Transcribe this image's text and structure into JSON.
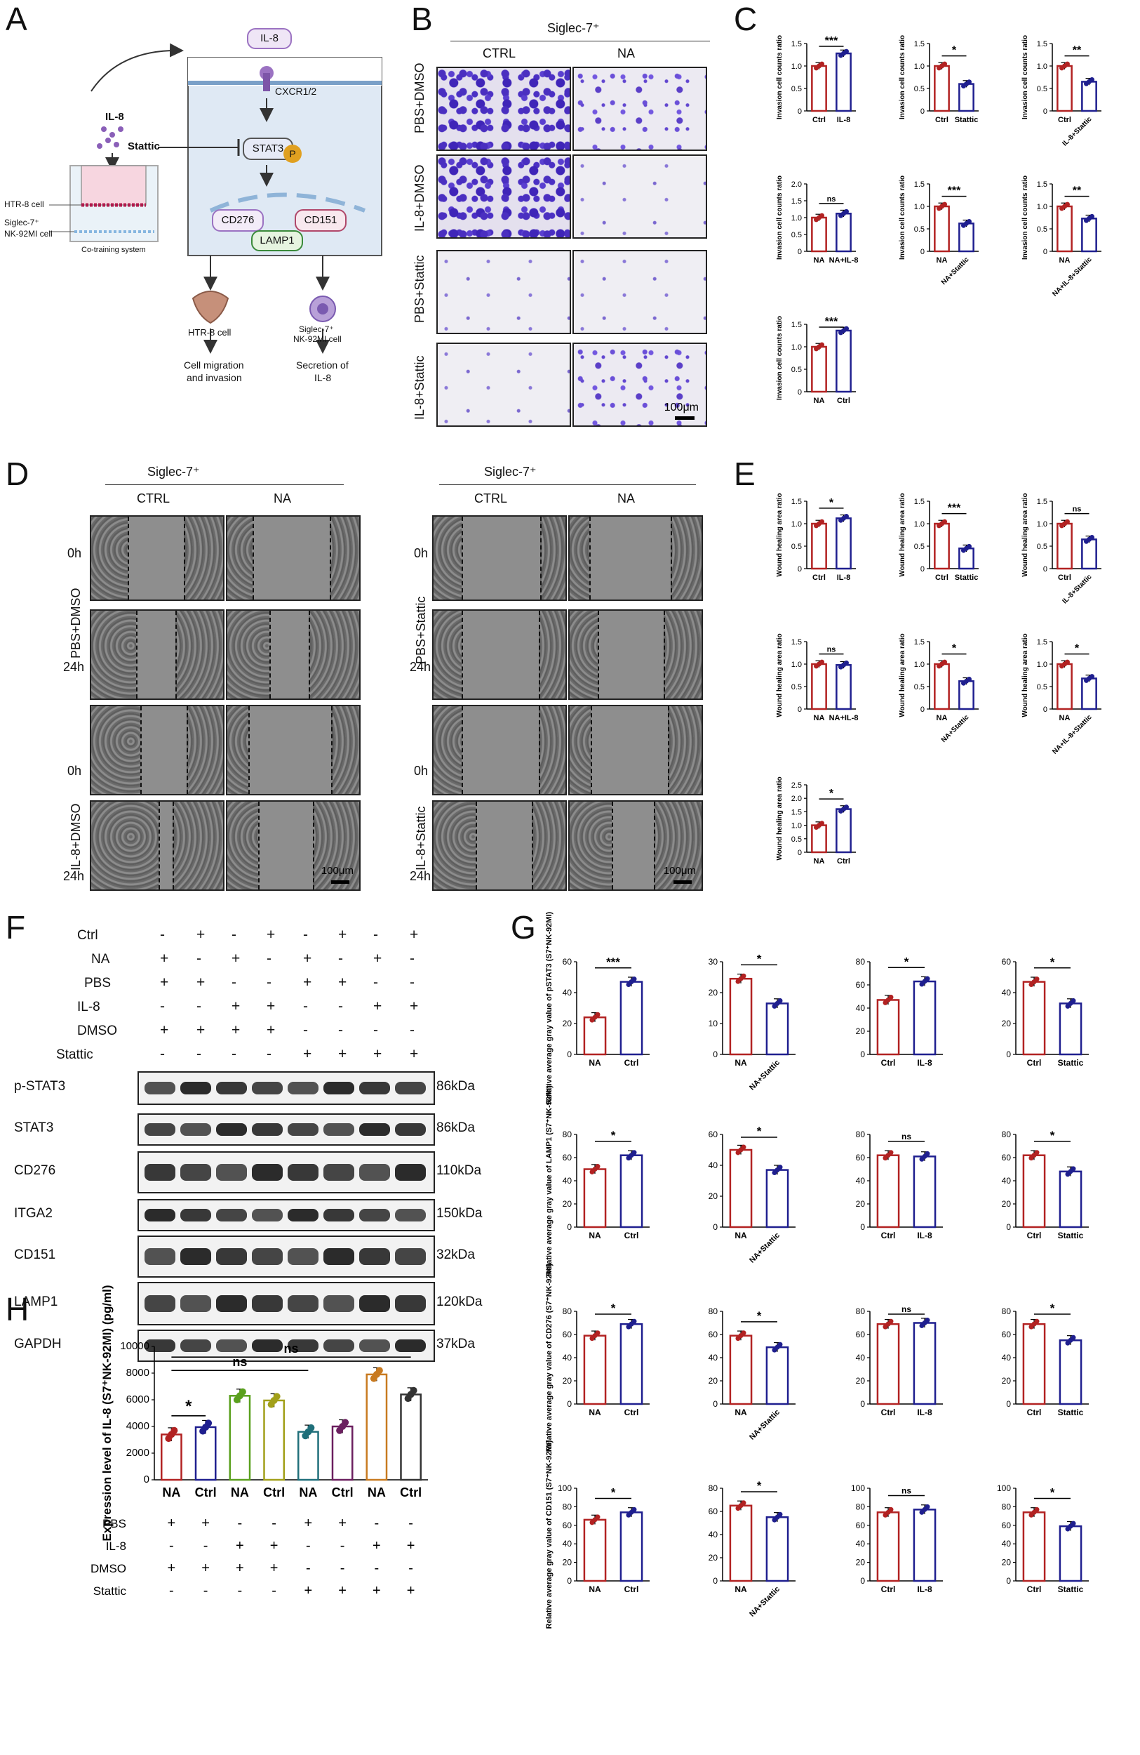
{
  "panels": {
    "A": "A",
    "B": "B",
    "C": "C",
    "D": "D",
    "E": "E",
    "F": "F",
    "G": "G",
    "H": "H"
  },
  "colors": {
    "red": "#b22222",
    "blue": "#1f1f8f",
    "green": "#5aa01e",
    "olive": "#a2a01a",
    "teal": "#1f6f7a",
    "purple": "#6b1f5f",
    "orange": "#c87a20",
    "black": "#333333"
  },
  "schematic": {
    "il8_top": "IL-8",
    "receptor": "CXCR1/2",
    "stat3": "STAT3",
    "phospho": "P",
    "cd276": "CD276",
    "cd151": "CD151",
    "lamp1": "LAMP1",
    "il8_left": "IL-8",
    "stattic": "Stattic",
    "htr8_label": "HTR-8 cell",
    "nk_label_1": "Siglec-7⁺",
    "nk_label_2": "NK-92MI cell",
    "cotraining": "Co-training system",
    "out_htr8": "HTR-8 cell",
    "out_nk_1": "Siglec-7⁺",
    "out_nk_2": "NK-92MI cell",
    "result_1a": "Cell migration",
    "result_1b": "and invasion",
    "result_2a": "Secretion of",
    "result_2b": "IL-8"
  },
  "panel_b": {
    "header": "Siglec-7⁺",
    "cols": [
      "CTRL",
      "NA"
    ],
    "rows": [
      "PBS+DMSO",
      "IL-8+DMSO",
      "PBS+Stattic",
      "IL-8+Stattic"
    ],
    "scale": "100μm"
  },
  "panel_d": {
    "header": "Siglec-7⁺",
    "cols": [
      "CTRL",
      "NA"
    ],
    "left_groups": [
      "PBS+DMSO",
      "IL-8+DMSO"
    ],
    "right_groups": [
      "PBS+Stattic",
      "IL-8+Stattic"
    ],
    "times": [
      "0h",
      "24h"
    ],
    "scale": "100μm"
  },
  "panel_f": {
    "conditions": [
      "Ctrl",
      "NA",
      "PBS",
      "IL-8",
      "DMSO",
      "Stattic"
    ],
    "signs": [
      [
        "-",
        "+",
        "-",
        "+",
        "-",
        "+",
        "-",
        "+"
      ],
      [
        "+",
        "-",
        "+",
        "-",
        "+",
        "-",
        "+",
        "-"
      ],
      [
        "+",
        "+",
        "-",
        "-",
        "+",
        "+",
        "-",
        "-"
      ],
      [
        "-",
        "-",
        "+",
        "+",
        "-",
        "-",
        "+",
        "+"
      ],
      [
        "+",
        "+",
        "+",
        "+",
        "-",
        "-",
        "-",
        "-"
      ],
      [
        "-",
        "-",
        "-",
        "-",
        "+",
        "+",
        "+",
        "+"
      ]
    ],
    "blots": [
      {
        "name": "p-STAT3",
        "kda": "86kDa"
      },
      {
        "name": "STAT3",
        "kda": "86kDa"
      },
      {
        "name": "CD276",
        "kda": "110kDa"
      },
      {
        "name": "ITGA2",
        "kda": "150kDa"
      },
      {
        "name": "CD151",
        "kda": "32kDa"
      },
      {
        "name": "LAMP1",
        "kda": "120kDa"
      },
      {
        "name": "GAPDH",
        "kda": "37kDa"
      }
    ]
  },
  "chart_data": [
    {
      "panel": "C",
      "type": "bar",
      "ylabel": "Invasion cell counts ratio",
      "categories": [
        "Ctrl",
        "IL-8"
      ],
      "values": [
        1.0,
        1.28
      ],
      "ylim": [
        0,
        1.5
      ],
      "yticks": [
        0,
        0.5,
        1.0,
        1.5
      ],
      "sig": "***"
    },
    {
      "panel": "C",
      "type": "bar",
      "ylabel": "Invasion cell counts ratio",
      "categories": [
        "Ctrl",
        "Stattic"
      ],
      "values": [
        1.0,
        0.6
      ],
      "ylim": [
        0,
        1.5
      ],
      "yticks": [
        0,
        0.5,
        1.0,
        1.5
      ],
      "sig": "*"
    },
    {
      "panel": "C",
      "type": "bar",
      "ylabel": "Invasion cell counts ratio",
      "categories": [
        "Ctrl",
        "IL-8+Stattic"
      ],
      "values": [
        1.0,
        0.65
      ],
      "ylim": [
        0,
        1.5
      ],
      "yticks": [
        0,
        0.5,
        1.0,
        1.5
      ],
      "sig": "**"
    },
    {
      "panel": "C",
      "type": "bar",
      "ylabel": "Invasion cell counts ratio",
      "categories": [
        "NA",
        "NA+IL-8"
      ],
      "values": [
        1.0,
        1.12
      ],
      "ylim": [
        0,
        2.0
      ],
      "yticks": [
        0,
        0.5,
        1.0,
        1.5,
        2.0
      ],
      "sig": "ns"
    },
    {
      "panel": "C",
      "type": "bar",
      "ylabel": "Invasion cell counts ratio",
      "categories": [
        "NA",
        "NA+Stattic"
      ],
      "values": [
        1.0,
        0.62
      ],
      "ylim": [
        0,
        1.5
      ],
      "yticks": [
        0,
        0.5,
        1.0,
        1.5
      ],
      "sig": "***"
    },
    {
      "panel": "C",
      "type": "bar",
      "ylabel": "Invasion cell counts ratio",
      "categories": [
        "NA",
        "NA+IL-8+Stattic"
      ],
      "values": [
        1.0,
        0.73
      ],
      "ylim": [
        0,
        1.5
      ],
      "yticks": [
        0,
        0.5,
        1.0,
        1.5
      ],
      "sig": "**"
    },
    {
      "panel": "C",
      "type": "bar",
      "ylabel": "Invasion cell counts ratio",
      "categories": [
        "NA",
        "Ctrl"
      ],
      "values": [
        1.0,
        1.36
      ],
      "ylim": [
        0,
        1.5
      ],
      "yticks": [
        0,
        0.5,
        1.0,
        1.5
      ],
      "sig": "***"
    },
    {
      "panel": "E",
      "type": "bar",
      "ylabel": "Wound healing area ratio",
      "categories": [
        "Ctrl",
        "IL-8"
      ],
      "values": [
        1.0,
        1.12
      ],
      "ylim": [
        0,
        1.5
      ],
      "yticks": [
        0,
        0.5,
        1.0,
        1.5
      ],
      "sig": "*"
    },
    {
      "panel": "E",
      "type": "bar",
      "ylabel": "Wound healing area ratio",
      "categories": [
        "Ctrl",
        "Stattic"
      ],
      "values": [
        1.0,
        0.45
      ],
      "ylim": [
        0,
        1.5
      ],
      "yticks": [
        0,
        0.5,
        1.0,
        1.5
      ],
      "sig": "***"
    },
    {
      "panel": "E",
      "type": "bar",
      "ylabel": "Wound healing area ratio",
      "categories": [
        "Ctrl",
        "IL-8+Stattic"
      ],
      "values": [
        1.0,
        0.65
      ],
      "ylim": [
        0,
        1.5
      ],
      "yticks": [
        0,
        0.5,
        1.0,
        1.5
      ],
      "sig": "ns"
    },
    {
      "panel": "E",
      "type": "bar",
      "ylabel": "Wound healing area ratio",
      "categories": [
        "NA",
        "NA+IL-8"
      ],
      "values": [
        1.0,
        0.98
      ],
      "ylim": [
        0,
        1.5
      ],
      "yticks": [
        0,
        0.5,
        1.0,
        1.5
      ],
      "sig": "ns"
    },
    {
      "panel": "E",
      "type": "bar",
      "ylabel": "Wound healing area ratio",
      "categories": [
        "NA",
        "NA+Stattic"
      ],
      "values": [
        1.0,
        0.62
      ],
      "ylim": [
        0,
        1.5
      ],
      "yticks": [
        0,
        0.5,
        1.0,
        1.5
      ],
      "sig": "*"
    },
    {
      "panel": "E",
      "type": "bar",
      "ylabel": "Wound healing area ratio",
      "categories": [
        "NA",
        "NA+IL-8+Stattic"
      ],
      "values": [
        1.0,
        0.68
      ],
      "ylim": [
        0,
        1.5
      ],
      "yticks": [
        0,
        0.5,
        1.0,
        1.5
      ],
      "sig": "*"
    },
    {
      "panel": "E",
      "type": "bar",
      "ylabel": "Wound healing area ratio",
      "categories": [
        "NA",
        "Ctrl"
      ],
      "values": [
        1.0,
        1.6
      ],
      "ylim": [
        0,
        2.5
      ],
      "yticks": [
        0,
        0.5,
        1.0,
        1.5,
        2.0,
        2.5
      ],
      "sig": "*"
    },
    {
      "panel": "G",
      "type": "bar",
      "ylabel": "Relative average gray value of pSTAT3 (S7⁺NK-92MI)",
      "categories": [
        "NA",
        "Ctrl"
      ],
      "values": [
        24,
        47
      ],
      "ylim": [
        0,
        60
      ],
      "yticks": [
        0,
        20,
        40,
        60
      ],
      "sig": "***"
    },
    {
      "panel": "G",
      "type": "bar",
      "ylabel": "",
      "categories": [
        "NA",
        "NA+Stattic"
      ],
      "values": [
        24.5,
        16.5
      ],
      "ylim": [
        0,
        30
      ],
      "yticks": [
        0,
        10,
        20,
        30
      ],
      "sig": "*"
    },
    {
      "panel": "G",
      "type": "bar",
      "ylabel": "",
      "categories": [
        "Ctrl",
        "IL-8"
      ],
      "values": [
        47,
        63
      ],
      "ylim": [
        0,
        80
      ],
      "yticks": [
        0,
        20,
        40,
        60,
        80
      ],
      "sig": "*"
    },
    {
      "panel": "G",
      "type": "bar",
      "ylabel": "",
      "categories": [
        "Ctrl",
        "Stattic"
      ],
      "values": [
        47,
        33
      ],
      "ylim": [
        0,
        60
      ],
      "yticks": [
        0,
        20,
        40,
        60
      ],
      "sig": "*"
    },
    {
      "panel": "G",
      "type": "bar",
      "ylabel": "Relative average gray value of LAMP1 (S7⁺NK-92MI)",
      "categories": [
        "NA",
        "Ctrl"
      ],
      "values": [
        50,
        62
      ],
      "ylim": [
        0,
        80
      ],
      "yticks": [
        0,
        20,
        40,
        60,
        80
      ],
      "sig": "*"
    },
    {
      "panel": "G",
      "type": "bar",
      "ylabel": "",
      "categories": [
        "NA",
        "NA+Stattic"
      ],
      "values": [
        50,
        37
      ],
      "ylim": [
        0,
        60
      ],
      "yticks": [
        0,
        20,
        40,
        60
      ],
      "sig": "*"
    },
    {
      "panel": "G",
      "type": "bar",
      "ylabel": "",
      "categories": [
        "Ctrl",
        "IL-8"
      ],
      "values": [
        62,
        61
      ],
      "ylim": [
        0,
        80
      ],
      "yticks": [
        0,
        20,
        40,
        60,
        80
      ],
      "sig": "ns"
    },
    {
      "panel": "G",
      "type": "bar",
      "ylabel": "",
      "categories": [
        "Ctrl",
        "Stattic"
      ],
      "values": [
        62,
        48
      ],
      "ylim": [
        0,
        80
      ],
      "yticks": [
        0,
        20,
        40,
        60,
        80
      ],
      "sig": "*"
    },
    {
      "panel": "G",
      "type": "bar",
      "ylabel": "Relative average gray value of CD276 (S7⁺NK-92MI)",
      "categories": [
        "NA",
        "Ctrl"
      ],
      "values": [
        59,
        69
      ],
      "ylim": [
        0,
        80
      ],
      "yticks": [
        0,
        20,
        40,
        60,
        80
      ],
      "sig": "*"
    },
    {
      "panel": "G",
      "type": "bar",
      "ylabel": "",
      "categories": [
        "NA",
        "NA+Stattic"
      ],
      "values": [
        59,
        49
      ],
      "ylim": [
        0,
        80
      ],
      "yticks": [
        0,
        20,
        40,
        60,
        80
      ],
      "sig": "*"
    },
    {
      "panel": "G",
      "type": "bar",
      "ylabel": "",
      "categories": [
        "Ctrl",
        "IL-8"
      ],
      "values": [
        69,
        70
      ],
      "ylim": [
        0,
        80
      ],
      "yticks": [
        0,
        20,
        40,
        60,
        80
      ],
      "sig": "ns"
    },
    {
      "panel": "G",
      "type": "bar",
      "ylabel": "",
      "categories": [
        "Ctrl",
        "Stattic"
      ],
      "values": [
        69,
        55
      ],
      "ylim": [
        0,
        80
      ],
      "yticks": [
        0,
        20,
        40,
        60,
        80
      ],
      "sig": "*"
    },
    {
      "panel": "G",
      "type": "bar",
      "ylabel": "Relative average gray value of CD151 (S7⁺NK-92MI)",
      "categories": [
        "NA",
        "Ctrl"
      ],
      "values": [
        66,
        74
      ],
      "ylim": [
        0,
        100
      ],
      "yticks": [
        0,
        20,
        40,
        60,
        80,
        100
      ],
      "sig": "*"
    },
    {
      "panel": "G",
      "type": "bar",
      "ylabel": "",
      "categories": [
        "NA",
        "NA+Stattic"
      ],
      "values": [
        65,
        55
      ],
      "ylim": [
        0,
        80
      ],
      "yticks": [
        0,
        20,
        40,
        60,
        80
      ],
      "sig": "*"
    },
    {
      "panel": "G",
      "type": "bar",
      "ylabel": "",
      "categories": [
        "Ctrl",
        "IL-8"
      ],
      "values": [
        74,
        77
      ],
      "ylim": [
        0,
        100
      ],
      "yticks": [
        0,
        20,
        40,
        60,
        80,
        100
      ],
      "sig": "ns"
    },
    {
      "panel": "G",
      "type": "bar",
      "ylabel": "",
      "categories": [
        "Ctrl",
        "Stattic"
      ],
      "values": [
        74,
        59
      ],
      "ylim": [
        0,
        100
      ],
      "yticks": [
        0,
        20,
        40,
        60,
        80,
        100
      ],
      "sig": "*"
    },
    {
      "panel": "H",
      "type": "bar",
      "ylabel": "Expression level of IL-8 (S7⁺NK-92MI) (pg/ml)",
      "categories": [
        "NA",
        "Ctrl",
        "NA",
        "Ctrl",
        "NA",
        "Ctrl",
        "NA",
        "Ctrl"
      ],
      "values": [
        3400,
        3950,
        6300,
        5950,
        3600,
        4000,
        7900,
        6400
      ],
      "ylim": [
        0,
        10000
      ],
      "yticks": [
        0,
        2000,
        4000,
        6000,
        8000,
        10000
      ],
      "sig": [
        "*",
        "ns",
        "ns"
      ],
      "conditions": {
        "PBS": [
          "+",
          "+",
          "-",
          "-",
          "+",
          "+",
          "-",
          "-"
        ],
        "IL-8": [
          "-",
          "-",
          "+",
          "+",
          "-",
          "-",
          "+",
          "+"
        ],
        "DMSO": [
          "+",
          "+",
          "+",
          "+",
          "-",
          "-",
          "-",
          "-"
        ],
        "Stattic": [
          "-",
          "-",
          "-",
          "-",
          "+",
          "+",
          "+",
          "+"
        ]
      }
    }
  ]
}
